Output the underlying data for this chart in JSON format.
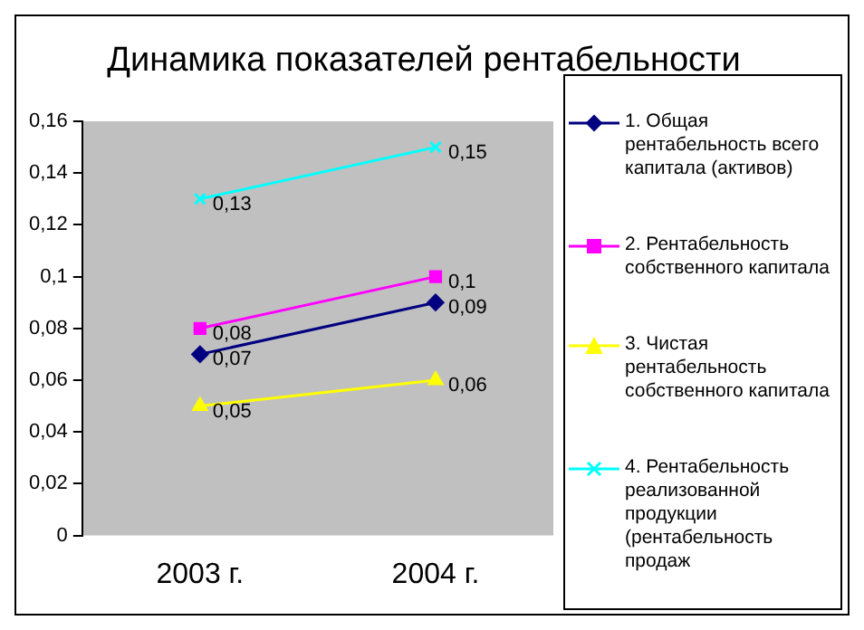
{
  "chart_data": {
    "type": "line",
    "title": "Динамика показателей рентабельности",
    "categories": [
      "2003 г.",
      "2004 г."
    ],
    "series": [
      {
        "name": "1. Общая рентабельность всего капитала (активов)",
        "color": "#000080",
        "marker": "diamond",
        "values": [
          0.07,
          0.09
        ],
        "value_labels": [
          "0,07",
          "0,09"
        ]
      },
      {
        "name": "2. Рентабельность собственного капитала",
        "color": "#ff00ff",
        "marker": "square",
        "values": [
          0.08,
          0.1
        ],
        "value_labels": [
          "0,08",
          "0,1"
        ]
      },
      {
        "name": "3. Чистая рентабельность собственного капитала",
        "color": "#ffff00",
        "marker": "triangle",
        "values": [
          0.05,
          0.06
        ],
        "value_labels": [
          "0,05",
          "0,06"
        ]
      },
      {
        "name": "4. Рентабельность реализованной продукции (рентабельность продаж",
        "color": "#00ffff",
        "marker": "cross",
        "values": [
          0.13,
          0.15
        ],
        "value_labels": [
          "0,13",
          "0,15"
        ]
      }
    ],
    "ylim": [
      0,
      0.16
    ],
    "yticks": [
      {
        "value": 0,
        "label": "0"
      },
      {
        "value": 0.02,
        "label": "0,02"
      },
      {
        "value": 0.04,
        "label": "0,04"
      },
      {
        "value": 0.06,
        "label": "0,06"
      },
      {
        "value": 0.08,
        "label": "0,08"
      },
      {
        "value": 0.1,
        "label": "0,1"
      },
      {
        "value": 0.12,
        "label": "0,12"
      },
      {
        "value": 0.14,
        "label": "0,14"
      },
      {
        "value": 0.16,
        "label": "0,16"
      }
    ],
    "grid": false,
    "legend": "right"
  }
}
